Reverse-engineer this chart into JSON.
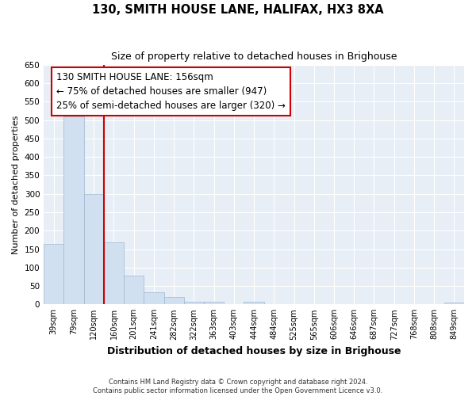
{
  "title": "130, SMITH HOUSE LANE, HALIFAX, HX3 8XA",
  "subtitle": "Size of property relative to detached houses in Brighouse",
  "xlabel": "Distribution of detached houses by size in Brighouse",
  "ylabel": "Number of detached properties",
  "bar_color": "#d0e0f0",
  "bar_edge_color": "#a0b8d0",
  "background_color": "#e8eef5",
  "grid_color": "#ffffff",
  "fig_background": "#ffffff",
  "categories": [
    "39sqm",
    "79sqm",
    "120sqm",
    "160sqm",
    "201sqm",
    "241sqm",
    "282sqm",
    "322sqm",
    "363sqm",
    "403sqm",
    "444sqm",
    "484sqm",
    "525sqm",
    "565sqm",
    "606sqm",
    "646sqm",
    "687sqm",
    "727sqm",
    "768sqm",
    "808sqm",
    "849sqm"
  ],
  "values": [
    165,
    510,
    300,
    168,
    78,
    32,
    20,
    8,
    8,
    1,
    8,
    1,
    0,
    0,
    0,
    0,
    0,
    0,
    0,
    0,
    6
  ],
  "property_line_x": 3.0,
  "property_line_color": "#cc0000",
  "annotation_text": "130 SMITH HOUSE LANE: 156sqm\n← 75% of detached houses are smaller (947)\n25% of semi-detached houses are larger (320) →",
  "annotation_box_color": "#ffffff",
  "annotation_box_edge": "#cc0000",
  "ylim": [
    0,
    650
  ],
  "yticks": [
    0,
    50,
    100,
    150,
    200,
    250,
    300,
    350,
    400,
    450,
    500,
    550,
    600,
    650
  ],
  "footer_line1": "Contains HM Land Registry data © Crown copyright and database right 2024.",
  "footer_line2": "Contains public sector information licensed under the Open Government Licence v3.0."
}
